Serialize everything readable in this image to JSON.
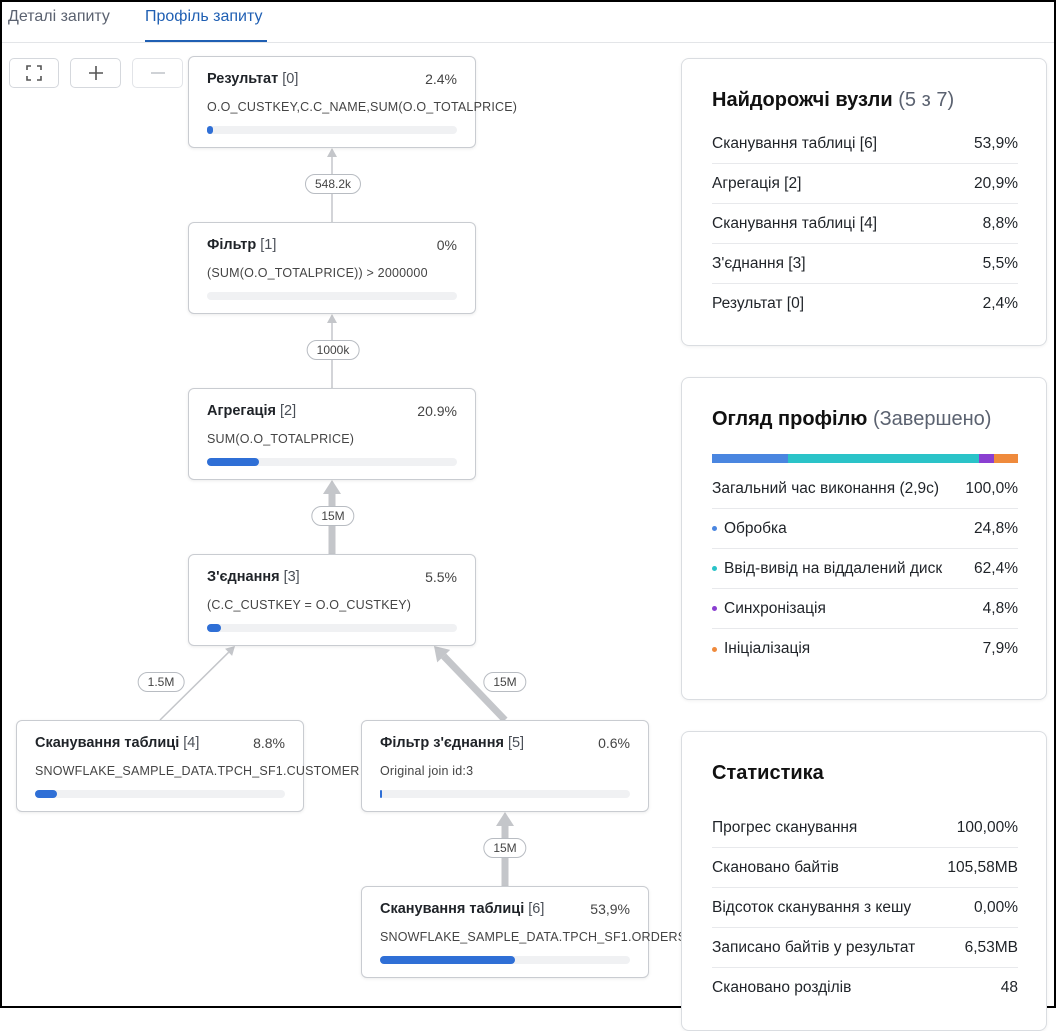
{
  "tabs": [
    {
      "label": "Деталі запиту",
      "active": false
    },
    {
      "label": "Профіль запиту",
      "active": true
    }
  ],
  "toolbar": {
    "fit_icon": "fullscreen-icon",
    "zoom_in_icon": "plus-icon",
    "zoom_out_icon": "minus-icon"
  },
  "graph": {
    "nodes": [
      {
        "id": "n0",
        "name": "Результат",
        "index": "[0]",
        "percent": "2.4%",
        "detail": "O.O_CUSTKEY,C.C_NAME,SUM(O.O_TOTALPRICE)",
        "progress": 0.024
      },
      {
        "id": "n1",
        "name": "Фільтр",
        "index": "[1]",
        "percent": "0%",
        "detail": "(SUM(O.O_TOTALPRICE)) > 2000000",
        "progress": 0
      },
      {
        "id": "n2",
        "name": "Агрегація",
        "index": "[2]",
        "percent": "20.9%",
        "detail": "SUM(O.O_TOTALPRICE)",
        "progress": 0.209
      },
      {
        "id": "n3",
        "name": "З'єднання",
        "index": "[3]",
        "percent": "5.5%",
        "detail": "(C.C_CUSTKEY = O.O_CUSTKEY)",
        "progress": 0.055
      },
      {
        "id": "n4",
        "name": "Сканування таблиці",
        "index": "[4]",
        "percent": "8.8%",
        "detail": "SNOWFLAKE_SAMPLE_DATA.TPCH_SF1.CUSTOMER",
        "progress": 0.088
      },
      {
        "id": "n5",
        "name": "Фільтр з'єднання",
        "index": "[5]",
        "percent": "0.6%",
        "detail": "Original join id:3",
        "progress": 0.006
      },
      {
        "id": "n6",
        "name": "Сканування таблиці",
        "index": "[6]",
        "percent": "53,9%",
        "detail": "SNOWFLAKE_SAMPLE_DATA.TPCH_SF1.ORDERS",
        "progress": 0.539
      }
    ],
    "edges": [
      {
        "from": "n1",
        "to": "n0",
        "rows": "548.2k"
      },
      {
        "from": "n2",
        "to": "n1",
        "rows": "1000k"
      },
      {
        "from": "n3",
        "to": "n2",
        "rows": "15M"
      },
      {
        "from": "n4",
        "to": "n3",
        "rows": "1.5M"
      },
      {
        "from": "n5",
        "to": "n3",
        "rows": "15M"
      },
      {
        "from": "n6",
        "to": "n5",
        "rows": "15M"
      }
    ]
  },
  "expensive": {
    "title": "Найдорожчі вузли",
    "subtitle": "(5 з 7)",
    "rows": [
      {
        "label": "Сканування таблиці [6]",
        "value": "53,9%"
      },
      {
        "label": "Агрегація [2]",
        "value": "20,9%"
      },
      {
        "label": "Сканування таблиці [4]",
        "value": "8,8%"
      },
      {
        "label": "З'єднання [3]",
        "value": "5,5%"
      },
      {
        "label": "Результат [0]",
        "value": "2,4%"
      }
    ]
  },
  "overview": {
    "title": "Огляд профілю",
    "subtitle": "(Завершено)",
    "total": {
      "label": "Загальний час виконання  (2,9с)",
      "value": "100,0%"
    },
    "segments": [
      {
        "label": "Обробка",
        "value": "24,8%",
        "fraction": 0.248,
        "color": "#4a86e0"
      },
      {
        "label": "Ввід-вивід на віддалений диск",
        "value": "62,4%",
        "fraction": 0.624,
        "color": "#2ac3c8"
      },
      {
        "label": "Синхронізація",
        "value": "4,8%",
        "fraction": 0.048,
        "color": "#8a3fd1"
      },
      {
        "label": "Ініціалізація",
        "value": "7,9%",
        "fraction": 0.079,
        "color": "#ef8a3c"
      }
    ]
  },
  "stats": {
    "title": "Статистика",
    "rows": [
      {
        "label": "Прогрес сканування",
        "value": "100,00%"
      },
      {
        "label": "Скановано байтів",
        "value": "105,58MB"
      },
      {
        "label": "Відсоток сканування з кешу",
        "value": "0,00%"
      },
      {
        "label": "Записано байтів у результат",
        "value": "6,53MB"
      },
      {
        "label": "Скановано розділів",
        "value": "48"
      }
    ]
  }
}
